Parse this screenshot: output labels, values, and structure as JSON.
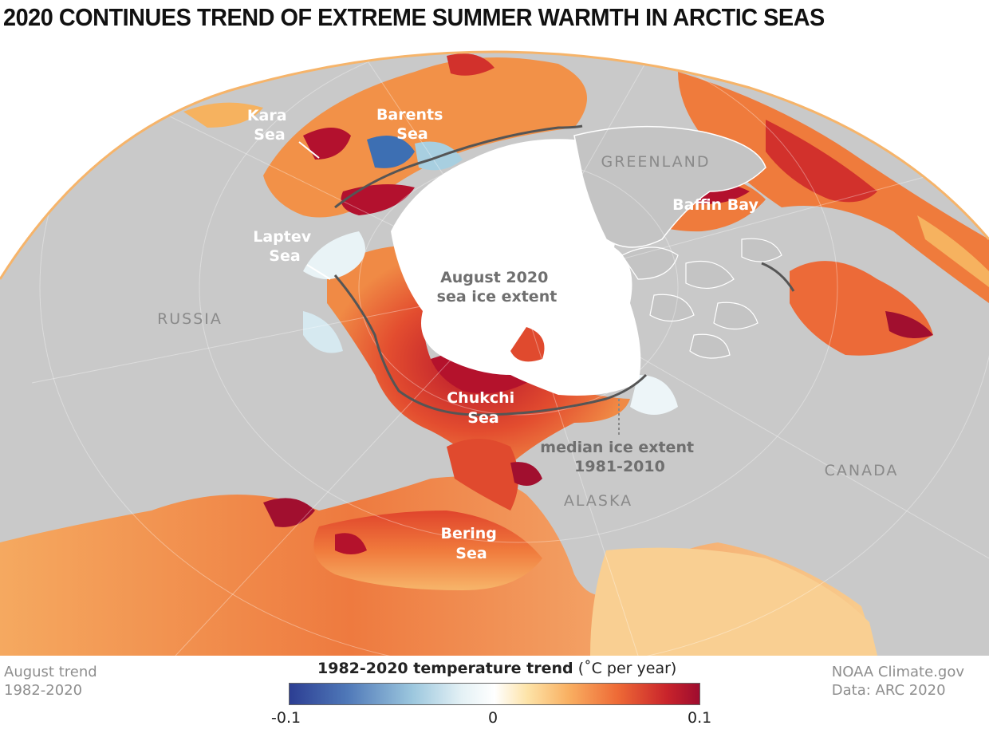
{
  "title": "2020 CONTINUES TREND OF EXTREME SUMMER WARMTH IN ARCTIC SEAS",
  "labels": {
    "kara": [
      "Kara",
      "Sea"
    ],
    "barents": [
      "Barents",
      "Sea"
    ],
    "greenland": "GREENLAND",
    "baffin": "Baffin Bay",
    "laptev": [
      "Laptev",
      "Sea"
    ],
    "august": [
      "August 2020",
      "sea ice extent"
    ],
    "russia": "RUSSIA",
    "chukchi": [
      "Chukchi",
      "Sea"
    ],
    "median": [
      "median ice extent",
      "1981-2010"
    ],
    "canada": "CANADA",
    "alaska": "ALASKA",
    "bering": [
      "Bering",
      "Sea"
    ]
  },
  "footer": {
    "left": [
      "August trend",
      "1982-2020"
    ],
    "right": [
      "NOAA Climate.gov",
      "Data: ARC 2020"
    ]
  },
  "legend": {
    "title_bold": "1982-2020 temperature trend",
    "title_unit": " (˚C per year)",
    "min": "-0.1",
    "zero": "0",
    "max": "0.1",
    "scale_min": -0.1,
    "scale_max": 0.1,
    "colors": [
      "#2c3e93",
      "#9cc7de",
      "#ffffff",
      "#f9b062",
      "#ee6a36",
      "#9e0c2f"
    ]
  }
}
